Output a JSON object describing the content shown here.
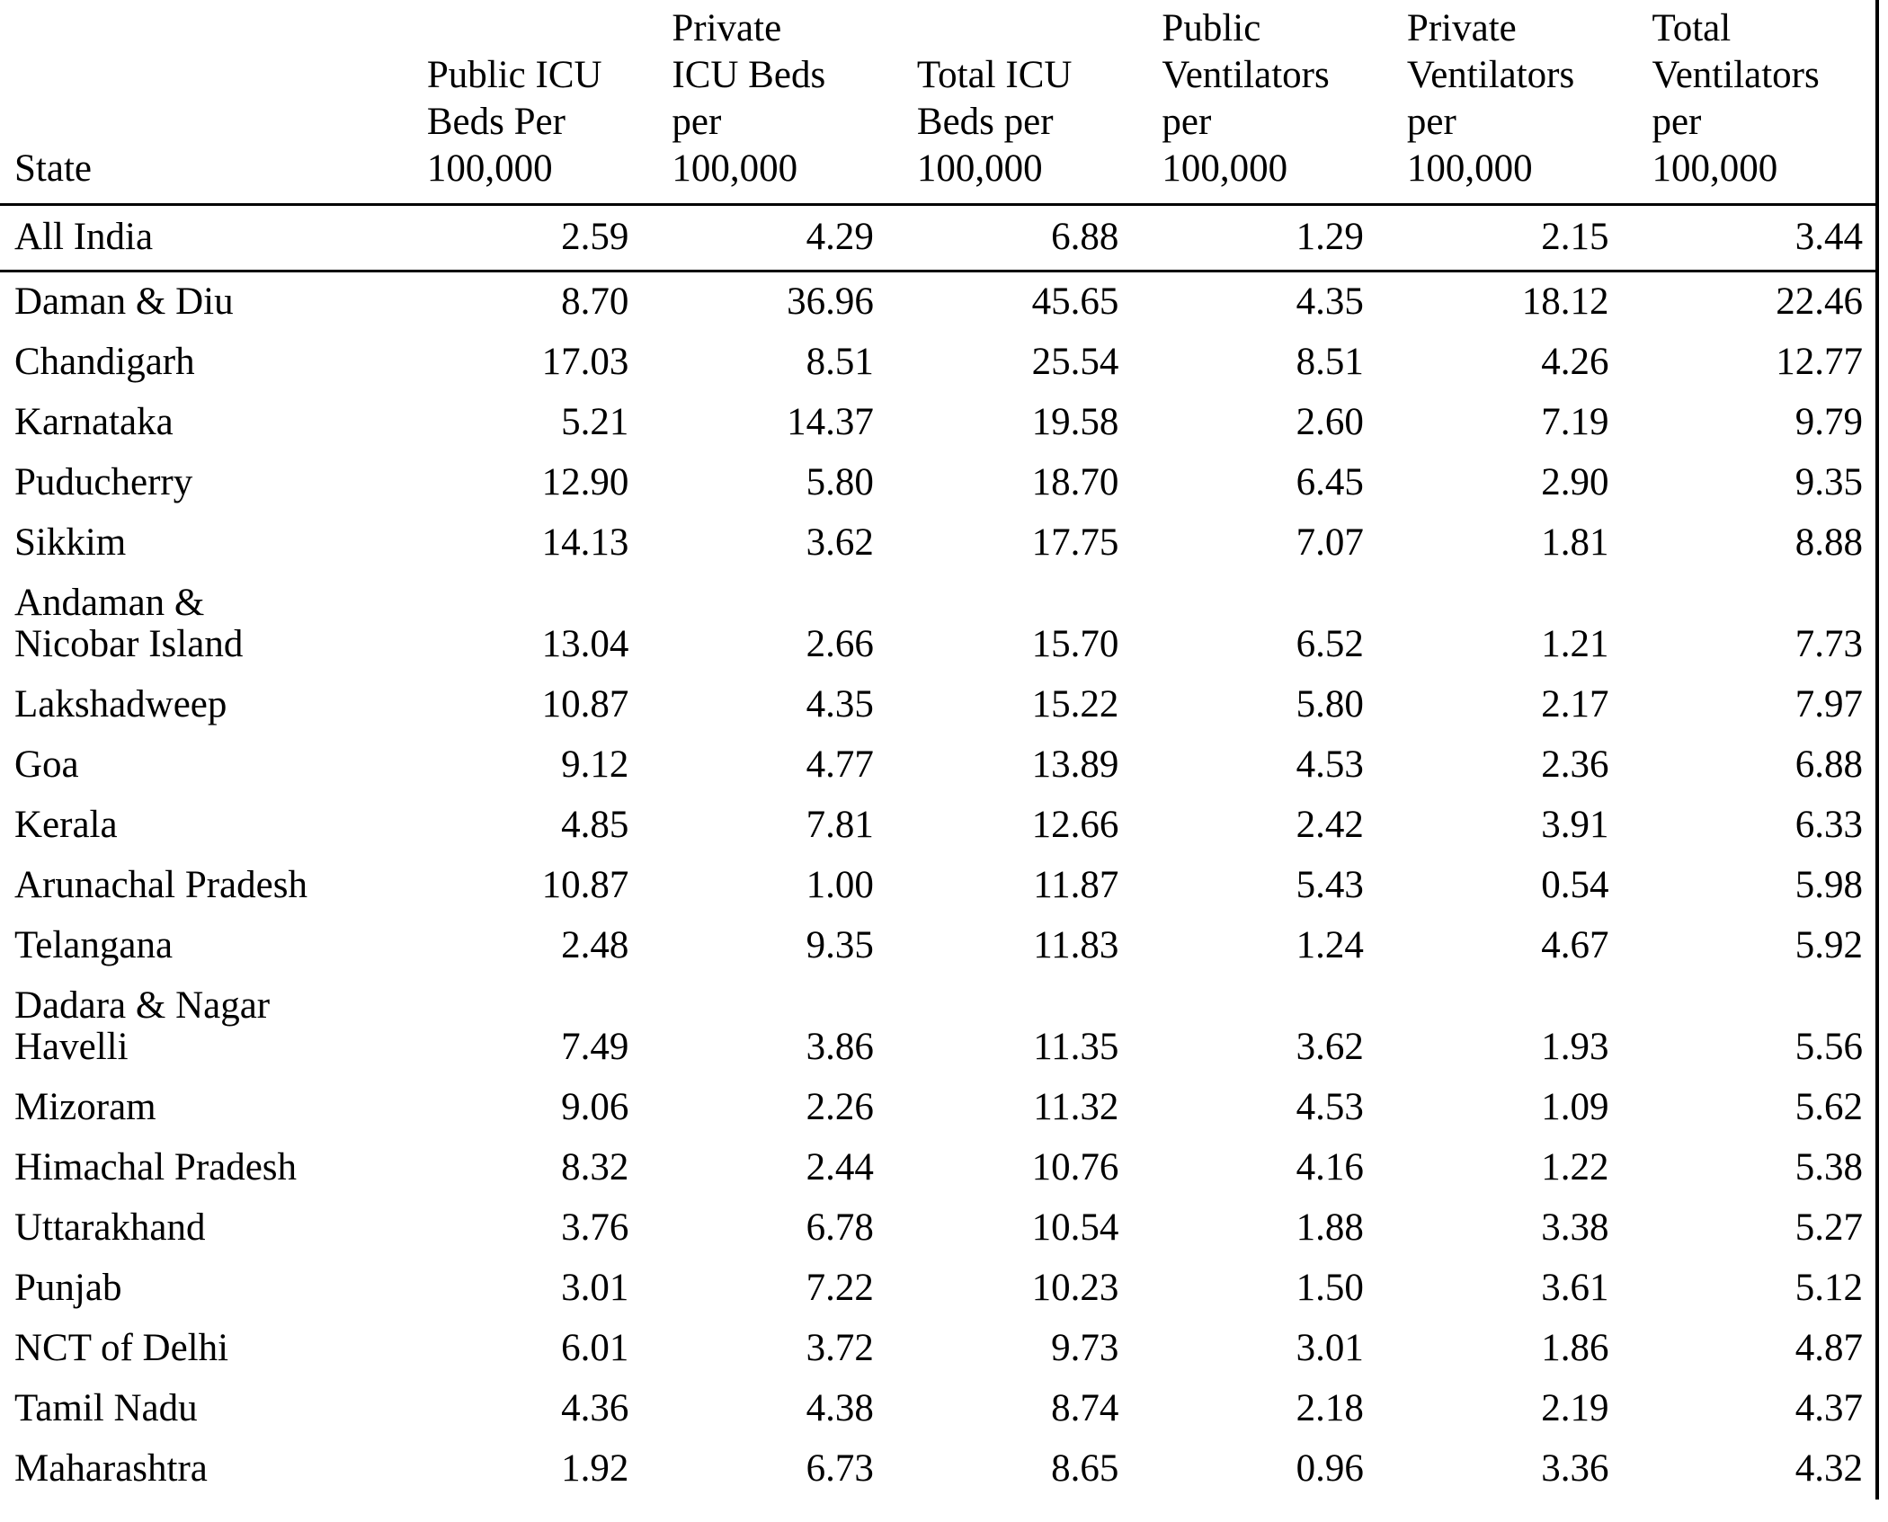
{
  "page": {
    "background": "#ffffff",
    "text_color": "#000000",
    "rule_color": "#000000"
  },
  "chart_data": {
    "type": "table",
    "columns": [
      "State",
      "Public ICU Beds Per 100,000",
      "Private ICU Beds per 100,000",
      "Total ICU Beds per 100,000",
      "Public Ventilators per 100,000",
      "Private Ventilators per 100,000",
      "Total Ventilators per 100,000"
    ],
    "header_lines": [
      [
        "State"
      ],
      [
        "Public ICU",
        "Beds Per",
        "100,000"
      ],
      [
        "Private",
        "ICU Beds",
        "per",
        "100,000"
      ],
      [
        "Total ICU",
        "Beds per",
        "100,000"
      ],
      [
        "Public",
        "Ventilators",
        "per",
        "100,000"
      ],
      [
        "Private",
        "Ventilators",
        "per",
        "100,000"
      ],
      [
        "Total",
        "Ventilators",
        "per",
        "100,000"
      ]
    ],
    "rows": [
      {
        "state": "All India",
        "emphasis": true,
        "cells": [
          "2.59",
          "4.29",
          "6.88",
          "1.29",
          "2.15",
          "3.44"
        ]
      },
      {
        "state": "Daman & Diu",
        "cells": [
          "8.70",
          "36.96",
          "45.65",
          "4.35",
          "18.12",
          "22.46"
        ]
      },
      {
        "state": "Chandigarh",
        "cells": [
          "17.03",
          "8.51",
          "25.54",
          "8.51",
          "4.26",
          "12.77"
        ]
      },
      {
        "state": "Karnataka",
        "cells": [
          "5.21",
          "14.37",
          "19.58",
          "2.60",
          "7.19",
          "9.79"
        ]
      },
      {
        "state": "Puducherry",
        "cells": [
          "12.90",
          "5.80",
          "18.70",
          "6.45",
          "2.90",
          "9.35"
        ]
      },
      {
        "state": "Sikkim",
        "cells": [
          "14.13",
          "3.62",
          "17.75",
          "7.07",
          "1.81",
          "8.88"
        ]
      },
      {
        "state": "Andaman & Nicobar Island",
        "lines": [
          "Andaman &",
          "Nicobar Island"
        ],
        "cells": [
          "13.04",
          "2.66",
          "15.70",
          "6.52",
          "1.21",
          "7.73"
        ]
      },
      {
        "state": "Lakshadweep",
        "cells": [
          "10.87",
          "4.35",
          "15.22",
          "5.80",
          "2.17",
          "7.97"
        ]
      },
      {
        "state": "Goa",
        "cells": [
          "9.12",
          "4.77",
          "13.89",
          "4.53",
          "2.36",
          "6.88"
        ]
      },
      {
        "state": "Kerala",
        "cells": [
          "4.85",
          "7.81",
          "12.66",
          "2.42",
          "3.91",
          "6.33"
        ]
      },
      {
        "state": "Arunachal Pradesh",
        "cells": [
          "10.87",
          "1.00",
          "11.87",
          "5.43",
          "0.54",
          "5.98"
        ]
      },
      {
        "state": "Telangana",
        "cells": [
          "2.48",
          "9.35",
          "11.83",
          "1.24",
          "4.67",
          "5.92"
        ]
      },
      {
        "state": "Dadara & Nagar Havelli",
        "lines": [
          "Dadara & Nagar",
          "Havelli"
        ],
        "cells": [
          "7.49",
          "3.86",
          "11.35",
          "3.62",
          "1.93",
          "5.56"
        ]
      },
      {
        "state": "Mizoram",
        "cells": [
          "9.06",
          "2.26",
          "11.32",
          "4.53",
          "1.09",
          "5.62"
        ]
      },
      {
        "state": "Himachal Pradesh",
        "cells": [
          "8.32",
          "2.44",
          "10.76",
          "4.16",
          "1.22",
          "5.38"
        ]
      },
      {
        "state": "Uttarakhand",
        "cells": [
          "3.76",
          "6.78",
          "10.54",
          "1.88",
          "3.38",
          "5.27"
        ]
      },
      {
        "state": "Punjab",
        "cells": [
          "3.01",
          "7.22",
          "10.23",
          "1.50",
          "3.61",
          "5.12"
        ]
      },
      {
        "state": "NCT of Delhi",
        "cells": [
          "6.01",
          "3.72",
          "9.73",
          "3.01",
          "1.86",
          "4.87"
        ]
      },
      {
        "state": "Tamil Nadu",
        "cells": [
          "4.36",
          "4.38",
          "8.74",
          "2.18",
          "2.19",
          "4.37"
        ]
      },
      {
        "state": "Maharashtra",
        "cells": [
          "1.92",
          "6.73",
          "8.65",
          "0.96",
          "3.36",
          "4.32"
        ]
      }
    ]
  }
}
